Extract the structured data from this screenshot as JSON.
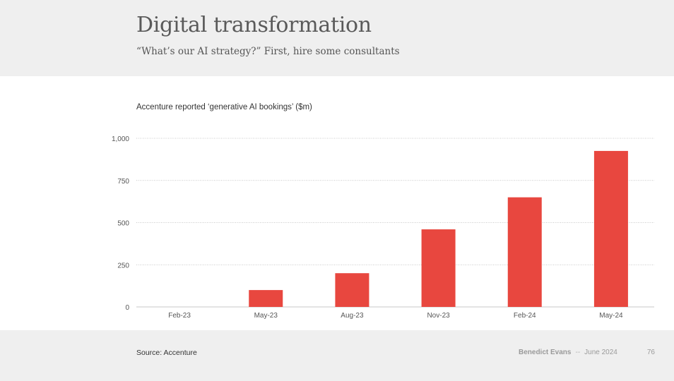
{
  "slide": {
    "title": "Digital transformation",
    "subtitle": "“What’s our AI strategy?” First, hire some consultants"
  },
  "footer": {
    "source": "Source: Accenture",
    "author": "Benedict Evans",
    "separator": "--",
    "date": "June 2024",
    "page_number": "76"
  },
  "colors": {
    "bar": "#e8473f",
    "gridline": "#b8b8b8",
    "axis_text": "#555555",
    "header_bg": "#efefef"
  },
  "chart_data": {
    "type": "bar",
    "title": "Accenture reported ‘generative AI bookings’ ($m)",
    "categories": [
      "Feb-23",
      "May-23",
      "Aug-23",
      "Nov-23",
      "Feb-24",
      "May-24"
    ],
    "values": [
      0,
      100,
      200,
      460,
      650,
      925
    ],
    "xlabel": "",
    "ylabel": "",
    "ylim": [
      0,
      1000
    ],
    "yticks": [
      0,
      250,
      500,
      750,
      1000
    ],
    "ytick_labels": [
      "0",
      "250",
      "500",
      "750",
      "1,000"
    ],
    "grid": true,
    "legend": "none"
  }
}
